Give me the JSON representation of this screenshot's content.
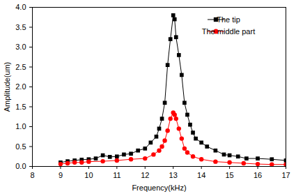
{
  "chart_data": {
    "type": "line",
    "x_label": "Frequency(kHz)",
    "y_label": "Amplitude(um)",
    "xlim": [
      8,
      17
    ],
    "xticks": [
      8,
      9,
      10,
      11,
      12,
      13,
      14,
      15,
      16,
      17
    ],
    "ylim": [
      0,
      4
    ],
    "yticks": [
      {
        "value": 0,
        "label": "0.0"
      },
      0.5,
      {
        "value": 1,
        "label": "1.0"
      },
      1.5,
      {
        "value": 2,
        "label": "2.0"
      },
      2.5,
      {
        "value": 3,
        "label": "3.0"
      },
      3.5,
      {
        "value": 4,
        "label": "4.0"
      }
    ],
    "grid": false,
    "legend": "top-right",
    "series": [
      {
        "name": "The tip",
        "color": "#000000",
        "marker": "square",
        "line_style": "solid",
        "x": [
          9.0,
          9.25,
          9.5,
          9.75,
          10.0,
          10.25,
          10.5,
          10.75,
          11.0,
          11.25,
          11.5,
          11.75,
          12.0,
          12.2,
          12.4,
          12.5,
          12.6,
          12.7,
          12.8,
          12.9,
          13.0,
          13.05,
          13.1,
          13.2,
          13.3,
          13.4,
          13.5,
          13.6,
          13.7,
          13.8,
          14.0,
          14.2,
          14.5,
          14.8,
          15.0,
          15.3,
          15.6,
          16.0,
          16.5,
          17.0
        ],
        "values": [
          0.1,
          0.13,
          0.15,
          0.17,
          0.18,
          0.2,
          0.28,
          0.24,
          0.25,
          0.3,
          0.32,
          0.4,
          0.45,
          0.6,
          0.75,
          0.95,
          1.2,
          1.6,
          2.55,
          3.2,
          3.8,
          3.7,
          3.25,
          2.8,
          2.3,
          1.6,
          1.3,
          1.05,
          0.85,
          0.7,
          0.6,
          0.5,
          0.4,
          0.3,
          0.28,
          0.25,
          0.2,
          0.2,
          0.18,
          0.15
        ]
      },
      {
        "name": "The middle part",
        "color": "#ff0000",
        "marker": "circle",
        "line_style": "solid",
        "x": [
          9.0,
          9.25,
          9.5,
          9.75,
          10.0,
          10.5,
          11.0,
          11.5,
          12.0,
          12.3,
          12.5,
          12.6,
          12.7,
          12.8,
          12.9,
          13.0,
          13.05,
          13.1,
          13.2,
          13.3,
          13.4,
          13.5,
          13.7,
          14.0,
          14.5,
          15.0,
          15.5,
          16.0,
          16.5,
          17.0
        ],
        "values": [
          0.06,
          0.08,
          0.1,
          0.1,
          0.12,
          0.13,
          0.15,
          0.18,
          0.2,
          0.3,
          0.4,
          0.5,
          0.65,
          0.9,
          1.2,
          1.35,
          1.3,
          1.2,
          0.95,
          0.7,
          0.45,
          0.35,
          0.25,
          0.18,
          0.12,
          0.1,
          0.08,
          0.06,
          0.05,
          0.05
        ]
      }
    ]
  }
}
